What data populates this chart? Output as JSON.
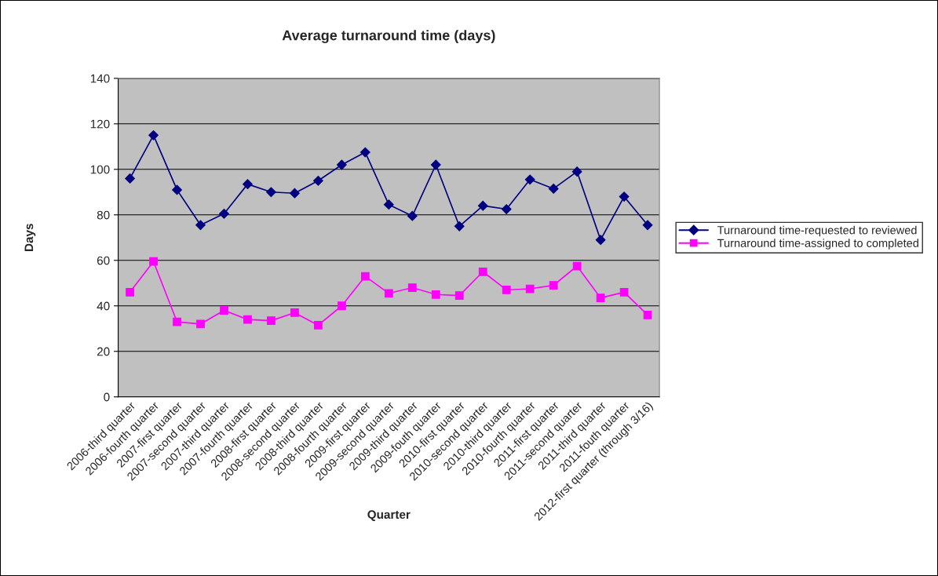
{
  "chart_data": {
    "type": "line",
    "title": "Average turnaround time (days)",
    "xlabel": "Quarter",
    "ylabel": "Days",
    "categories": [
      "2006-third quarter",
      "2006-fourth quarter",
      "2007-first quarter",
      "2007-second quarter",
      "2007-third quarter",
      "2007-fourth quarter",
      "2008-first quarter",
      "2008-second quarter",
      "2008-third quarter",
      "2008-fourth quarter",
      "2009-first quarter",
      "2009-second quarter",
      "2009-third quarter",
      "2009-fouth quarter",
      "2010-first quarter",
      "2010-second quarter",
      "2010-third quarter",
      "2010-fourth quarter",
      "2011-first quarter",
      "2011-second quarter",
      "2011-third quarter",
      "2011-fouth quarter",
      "2012-first quarter (through 3/16)"
    ],
    "series": [
      {
        "name": "Turnaround time-requested to reviewed",
        "color": "#000080",
        "marker": "diamond",
        "values": [
          96,
          115,
          91,
          75.5,
          80.5,
          93.5,
          90,
          89.5,
          95,
          102,
          107.5,
          84.5,
          79.5,
          102,
          75,
          84,
          82.5,
          95.5,
          91.5,
          99,
          69,
          88,
          75.5
        ]
      },
      {
        "name": "Turnaround time-assigned to completed",
        "color": "#ff00ff",
        "marker": "square",
        "values": [
          46,
          59.5,
          33,
          32,
          38,
          34,
          33.5,
          37,
          31.5,
          40,
          53,
          45.5,
          48,
          45,
          44.5,
          55,
          47,
          47.5,
          49,
          57.5,
          43.5,
          46,
          36
        ]
      }
    ],
    "ylim": [
      0,
      140
    ],
    "yticks": [
      0,
      20,
      40,
      60,
      80,
      100,
      120,
      140
    ],
    "grid": "y",
    "legend": "right",
    "line_style": "solid"
  }
}
